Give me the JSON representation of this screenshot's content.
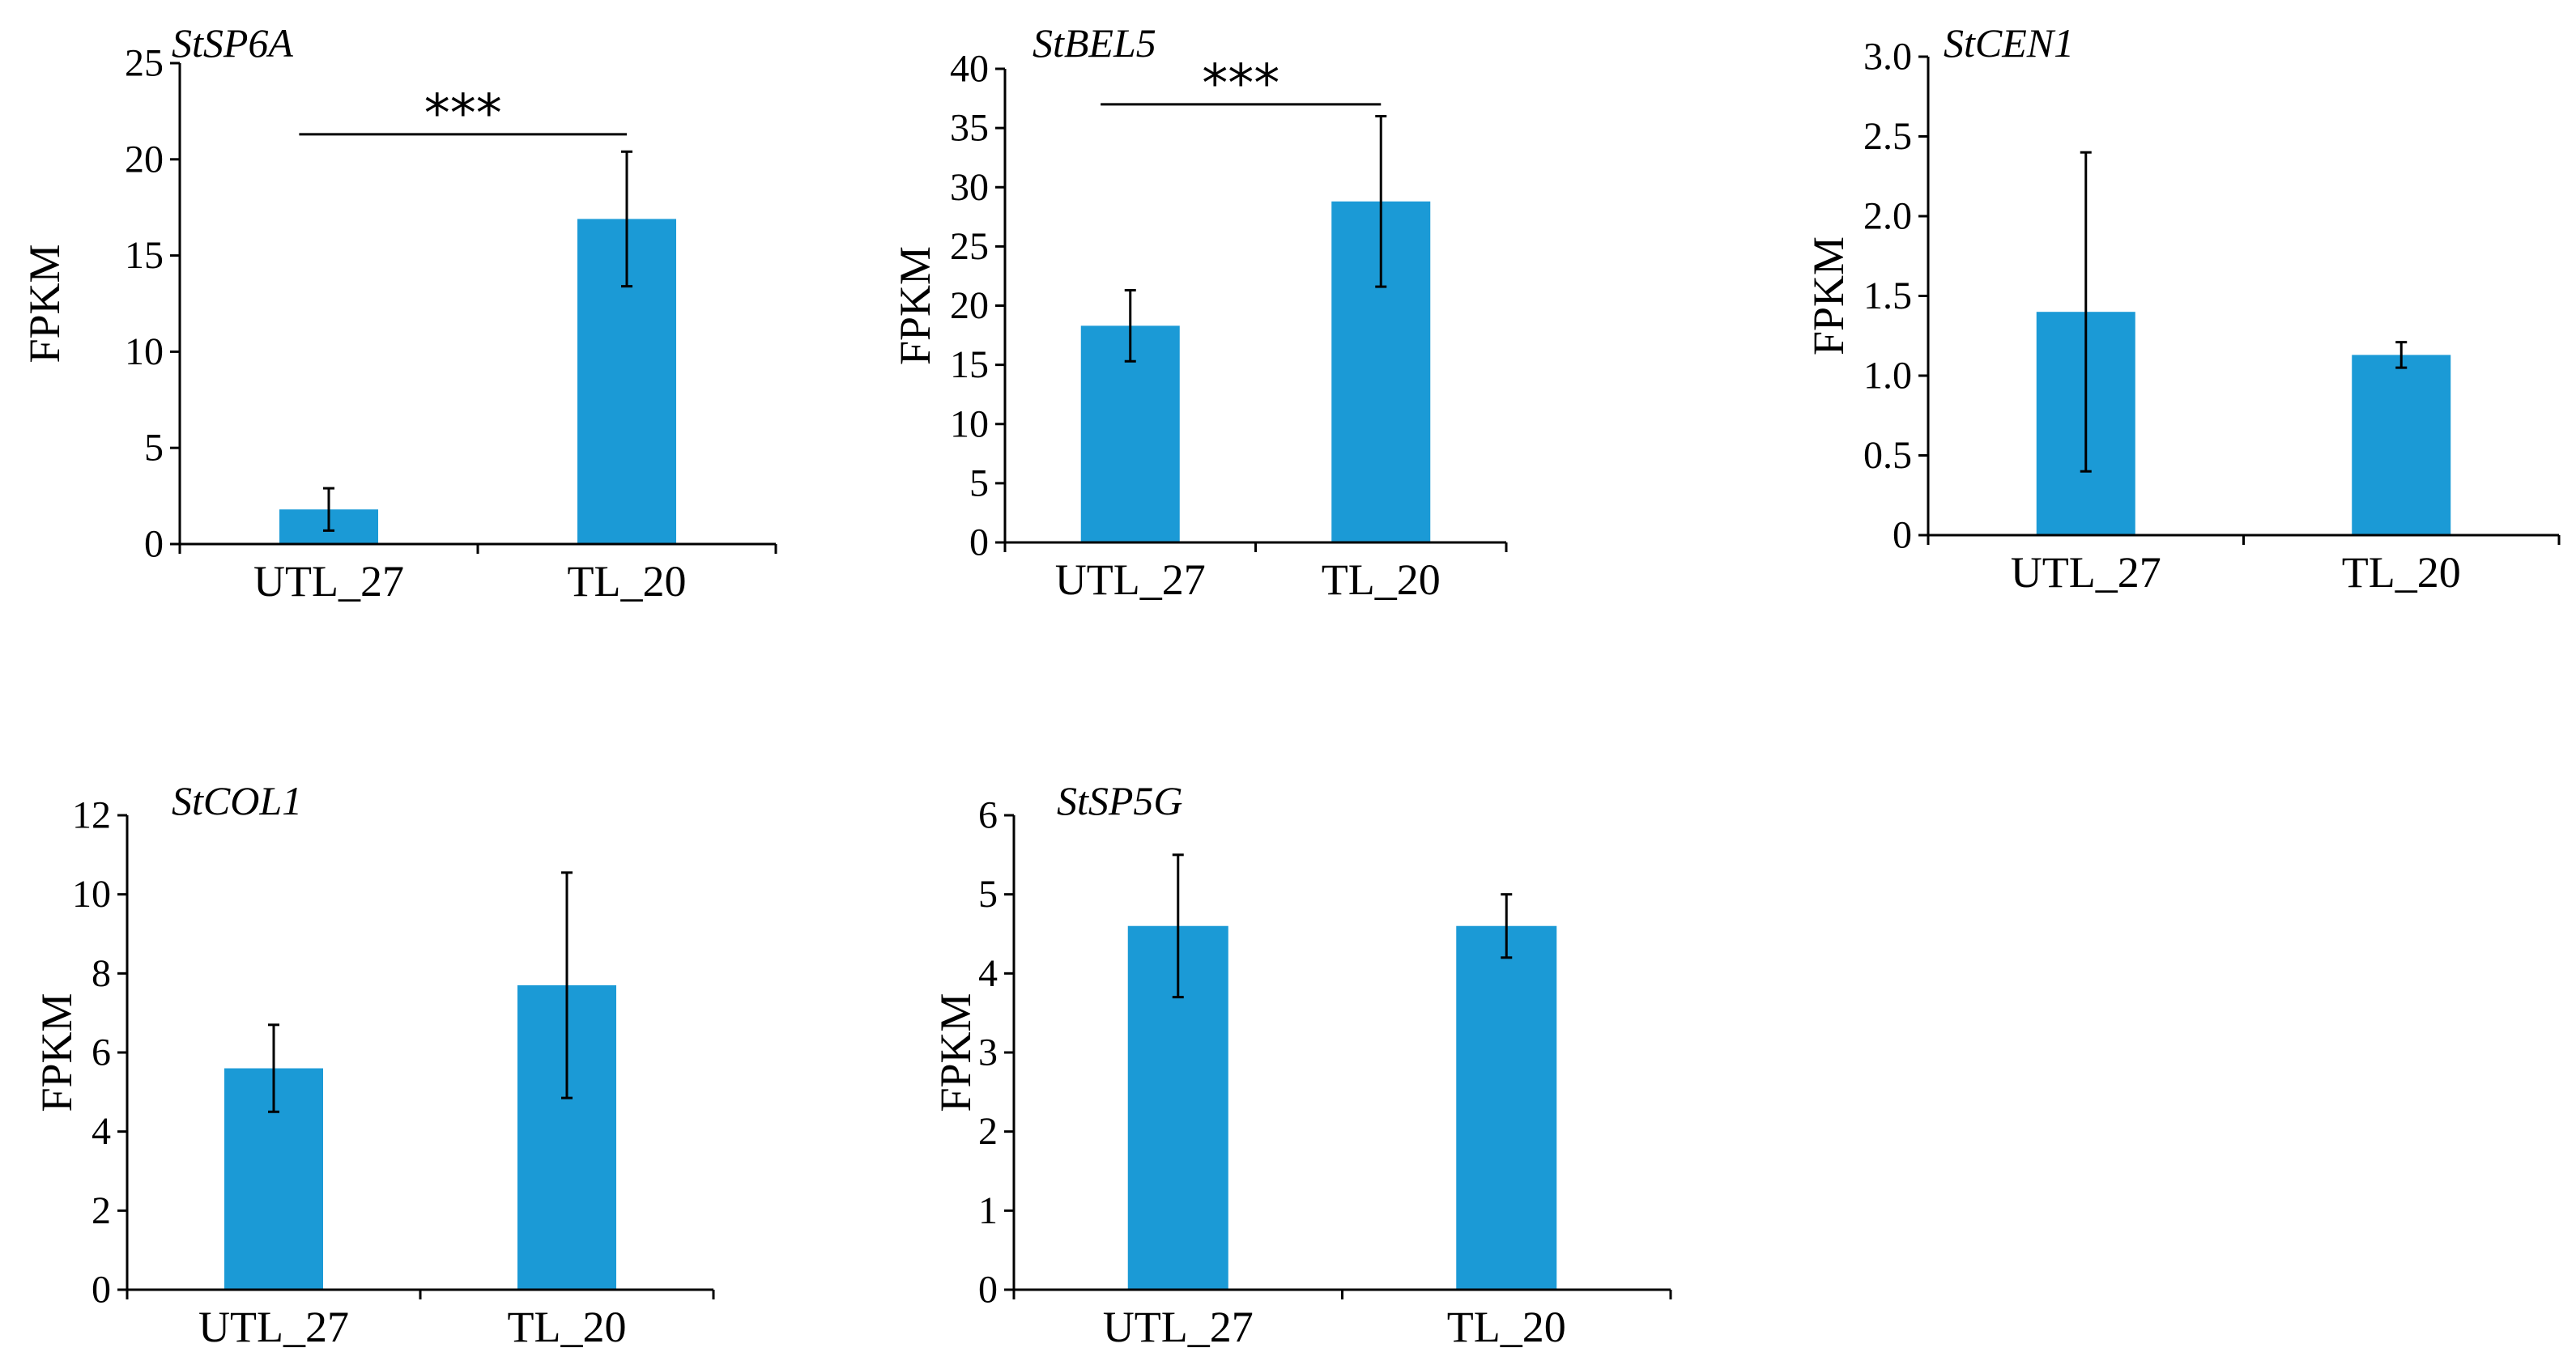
{
  "chart_data": [
    {
      "type": "bar",
      "title": "StSP6A",
      "ylabel": "FPKM",
      "xlabel": "",
      "categories": [
        "UTL_27",
        "TL_20"
      ],
      "values": [
        1.8,
        16.9
      ],
      "errors": [
        1.1,
        3.5
      ],
      "ylim": [
        0,
        25
      ],
      "yticks": [
        0,
        5,
        10,
        15,
        20,
        25
      ],
      "ytick_labels": [
        "0",
        "5",
        "10",
        "15",
        "20",
        "25"
      ],
      "significance": {
        "text": "***",
        "y": 21.3
      },
      "color": "#1b9ad6"
    },
    {
      "type": "bar",
      "title": "StBEL5",
      "ylabel": "FPKM",
      "xlabel": "",
      "categories": [
        "UTL_27",
        "TL_20"
      ],
      "values": [
        18.3,
        28.8
      ],
      "errors": [
        3.0,
        7.2
      ],
      "ylim": [
        0,
        40
      ],
      "yticks": [
        0,
        5,
        10,
        15,
        20,
        25,
        30,
        35,
        40
      ],
      "ytick_labels": [
        "0",
        "5",
        "10",
        "15",
        "20",
        "25",
        "30",
        "35",
        "40"
      ],
      "significance": {
        "text": "***",
        "y": 37.0
      },
      "color": "#1b9ad6"
    },
    {
      "type": "bar",
      "title": "StCEN1",
      "ylabel": "FPKM",
      "xlabel": "",
      "categories": [
        "UTL_27",
        "TL_20"
      ],
      "values": [
        1.4,
        1.13
      ],
      "errors": [
        1.0,
        0.08
      ],
      "ylim": [
        0,
        3.0
      ],
      "yticks": [
        0,
        0.5,
        1.0,
        1.5,
        2.0,
        2.5,
        3.0
      ],
      "ytick_labels": [
        "0",
        "0.5",
        "1.0",
        "1.5",
        "2.0",
        "2.5",
        "3.0"
      ],
      "significance": null,
      "color": "#1b9ad6"
    },
    {
      "type": "bar",
      "title": "StCOL1",
      "ylabel": "FPKM",
      "xlabel": "",
      "categories": [
        "UTL_27",
        "TL_20"
      ],
      "values": [
        5.6,
        7.7
      ],
      "errors": [
        1.1,
        2.85
      ],
      "ylim": [
        0,
        12
      ],
      "yticks": [
        0,
        2,
        4,
        6,
        8,
        10,
        12
      ],
      "ytick_labels": [
        "0",
        "2",
        "4",
        "6",
        "8",
        "10",
        "12"
      ],
      "significance": null,
      "color": "#1b9ad6"
    },
    {
      "type": "bar",
      "title": "StSP5G",
      "ylabel": "FPKM",
      "xlabel": "",
      "categories": [
        "UTL_27",
        "TL_20"
      ],
      "values": [
        4.6,
        4.6
      ],
      "errors": [
        0.9,
        0.4
      ],
      "ylim": [
        0,
        6
      ],
      "yticks": [
        0,
        1,
        2,
        3,
        4,
        5,
        6
      ],
      "ytick_labels": [
        "0",
        "1",
        "2",
        "3",
        "4",
        "5",
        "6"
      ],
      "significance": null,
      "color": "#1b9ad6"
    }
  ]
}
